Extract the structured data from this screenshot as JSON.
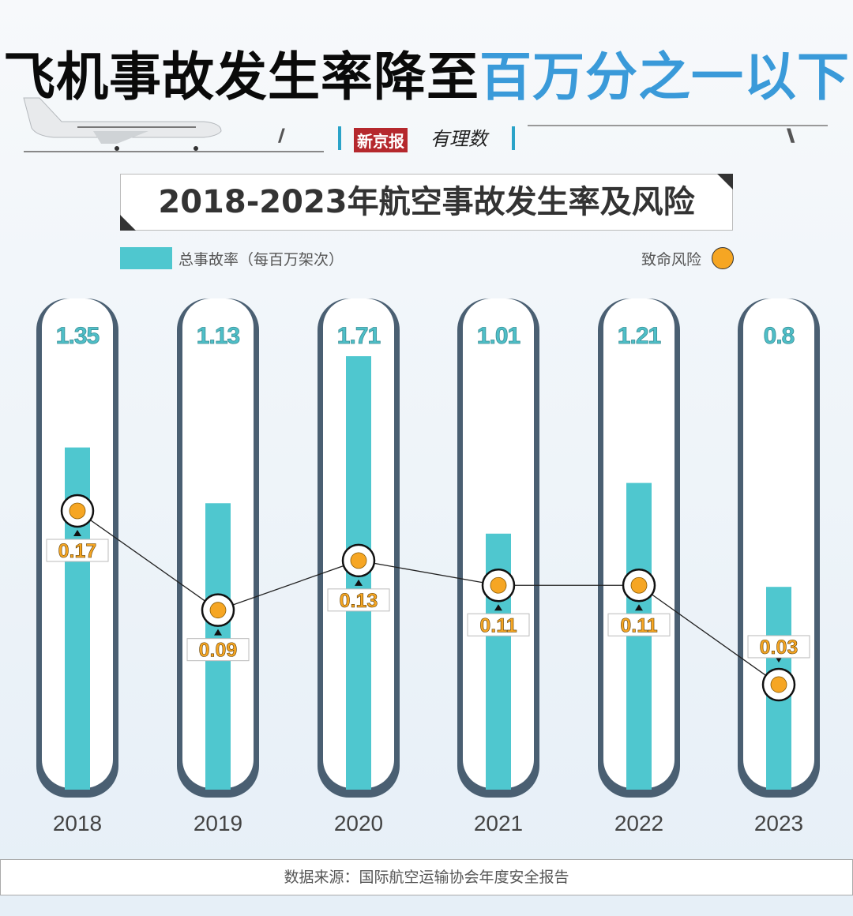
{
  "headline": {
    "part1": "飞机事故发生率降至",
    "part2": "百万分之一以下"
  },
  "brand": {
    "name": "新京报",
    "column": "有理数"
  },
  "chart_data": {
    "type": "bar",
    "title": "2018-2023年航空事故发生率及风险",
    "categories": [
      "2018",
      "2019",
      "2020",
      "2021",
      "2022",
      "2023"
    ],
    "series": [
      {
        "name": "总事故率（每百万架次）",
        "type": "bar",
        "color": "#4fc7cf",
        "values": [
          1.35,
          1.13,
          1.71,
          1.01,
          1.21,
          0.8
        ],
        "labels": [
          "1.35",
          "1.13",
          "1.71",
          "1.01",
          "1.21",
          "0.8"
        ]
      },
      {
        "name": "致命风险",
        "type": "line",
        "color": "#f6a623",
        "values": [
          0.17,
          0.09,
          0.13,
          0.11,
          0.11,
          0.03
        ],
        "labels": [
          "0.17",
          "0.09",
          "0.13",
          "0.11",
          "0.11",
          "0.03"
        ]
      }
    ],
    "legend": [
      "总事故率（每百万架次）",
      "致命风险"
    ],
    "legend_position": "top",
    "grid": false
  },
  "source": "数据来源：国际航空运输协会年度安全报告"
}
